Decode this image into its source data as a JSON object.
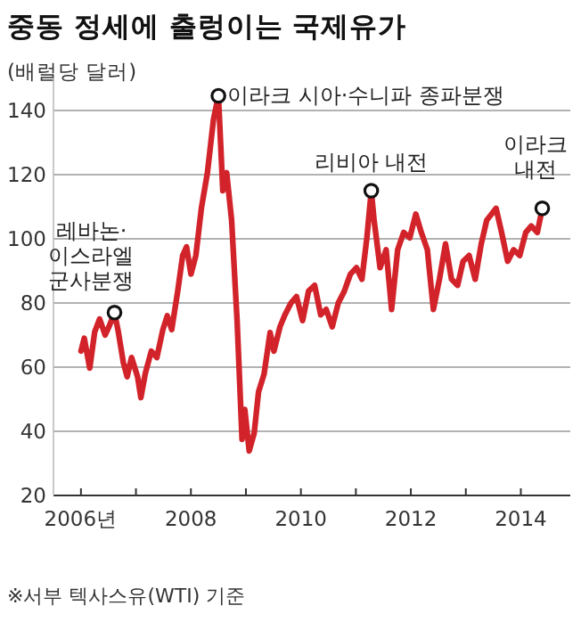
{
  "chart_data": {
    "type": "line",
    "title": "중동 정세에 출렁이는 국제유가",
    "ylabel": "(배럴당 달러)",
    "annotations": [
      {
        "text": "레바논·이스라엘 군사분쟁",
        "x": 2006.61,
        "y": 77
      },
      {
        "text": "이라크 시아·수니파 종파분쟁",
        "x": 2008.5,
        "y": 144.6
      },
      {
        "text": "리비아 내전",
        "x": 2011.28,
        "y": 115
      },
      {
        "text": "이라크 내전",
        "x": 2014.39,
        "y": 109.5
      },
      "※서부 텍사스유(WTI) 기준"
    ],
    "series": [
      {
        "color": "#d2232a",
        "x": [
          2006.0,
          2006.06,
          2006.16,
          2006.25,
          2006.34,
          2006.44,
          2006.52,
          2006.61,
          2006.68,
          2006.77,
          2006.84,
          2006.92,
          2007.03,
          2007.09,
          2007.17,
          2007.28,
          2007.38,
          2007.49,
          2007.57,
          2007.65,
          2007.76,
          2007.85,
          2007.92,
          2008.0,
          2008.09,
          2008.19,
          2008.3,
          2008.41,
          2008.5,
          2008.58,
          2008.65,
          2008.74,
          2008.84,
          2008.93,
          2008.98,
          2009.06,
          2009.15,
          2009.23,
          2009.33,
          2009.44,
          2009.51,
          2009.62,
          2009.71,
          2009.82,
          2009.92,
          2010.03,
          2010.14,
          2010.25,
          2010.36,
          2010.46,
          2010.57,
          2010.68,
          2010.79,
          2010.9,
          2011.01,
          2011.11,
          2011.2,
          2011.28,
          2011.33,
          2011.44,
          2011.55,
          2011.65,
          2011.76,
          2011.87,
          2011.98,
          2012.09,
          2012.19,
          2012.3,
          2012.41,
          2012.52,
          2012.63,
          2012.74,
          2012.85,
          2012.95,
          2013.06,
          2013.17,
          2013.28,
          2013.38,
          2013.55,
          2013.65,
          2013.76,
          2013.87,
          2013.98,
          2014.09,
          2014.19,
          2014.3,
          2014.39
        ],
        "values": [
          65,
          69,
          59.7,
          71,
          75,
          70,
          73,
          77,
          71,
          61.5,
          57,
          63,
          57,
          50.5,
          58,
          65,
          63,
          71.7,
          76,
          71.7,
          83.7,
          94.8,
          97.5,
          89,
          94.8,
          109.5,
          120.6,
          137.2,
          144.6,
          115,
          120.6,
          105.8,
          74.5,
          37.5,
          46.8,
          33.9,
          39.4,
          52.3,
          57.8,
          70.8,
          65,
          72.6,
          76.3,
          80,
          82,
          74.5,
          83.7,
          85.5,
          76.3,
          78,
          72.6,
          80,
          83.7,
          89,
          91,
          87.4,
          100.3,
          115,
          106,
          91,
          96.6,
          78,
          96.6,
          102,
          100.3,
          107.7,
          102,
          96.6,
          78,
          87.4,
          98.4,
          87.4,
          85.5,
          93,
          94.8,
          87.4,
          98.4,
          105.8,
          109.5,
          102,
          93,
          96.6,
          94.8,
          102,
          104,
          102,
          109.5
        ]
      }
    ],
    "xlim": [
      2005.5,
      2014.9
    ],
    "ylim": [
      20,
      150
    ],
    "xticks": [
      {
        "value": 2006,
        "label": "2006년"
      },
      {
        "value": 2007,
        "label": null
      },
      2008,
      {
        "value": 2009,
        "label": null
      },
      2010,
      {
        "value": 2011,
        "label": null
      },
      2012,
      {
        "value": 2013,
        "label": null
      },
      2014
    ],
    "yticks": [
      20,
      40,
      60,
      80,
      100,
      120,
      140
    ],
    "grid": "y",
    "marker": "none",
    "line_style": "solid"
  }
}
